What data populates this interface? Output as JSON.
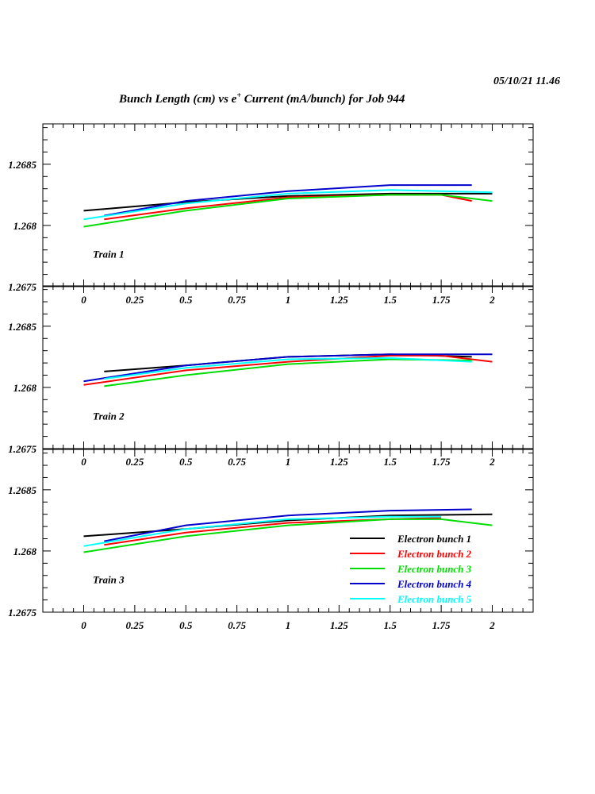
{
  "header": {
    "date": "05/10/21   11.46",
    "title_pre": "Bunch Length (cm) vs e",
    "title_sup": "+",
    "title_post": " Current (mA/bunch) for Job 944"
  },
  "chart_data": {
    "type": "line",
    "title": "Bunch Length (cm) vs e+ Current (mA/bunch) for Job 944",
    "xlabel": "Current (mA/bunch)",
    "ylabel": "Bunch Length (cm)",
    "xlim": [
      -0.2,
      2.2
    ],
    "ylim": [
      1.2675,
      1.26883
    ],
    "x_ticks": [
      "0",
      "0.25",
      "0.5",
      "0.75",
      "1",
      "1.25",
      "1.5",
      "1.75",
      "2"
    ],
    "y_ticks": [
      "1.2675",
      "1.268",
      "1.2685"
    ],
    "legend": {
      "placement": "bottom-right of Train 3 panel",
      "entries": [
        "Electron bunch 1",
        "Electron bunch 2",
        "Electron bunch 3",
        "Electron bunch 4",
        "Electron bunch 5"
      ]
    },
    "colors": [
      "#000000",
      "#ff0000",
      "#00dd00",
      "#0000cc",
      "#00ffff"
    ],
    "panels": [
      {
        "label": "Train 1",
        "series": [
          {
            "name": "Electron bunch 1",
            "x": [
              0,
              0.5,
              1,
              1.5,
              2
            ],
            "y": [
              1.26812,
              1.26819,
              1.26824,
              1.26826,
              1.26826
            ]
          },
          {
            "name": "Electron bunch 2",
            "x": [
              0.1,
              0.5,
              1,
              1.5,
              1.75,
              1.9
            ],
            "y": [
              1.26805,
              1.26814,
              1.26823,
              1.26825,
              1.26825,
              1.2682
            ]
          },
          {
            "name": "Electron bunch 3",
            "x": [
              0,
              0.5,
              1,
              1.5,
              1.75,
              2
            ],
            "y": [
              1.26799,
              1.26812,
              1.26822,
              1.26825,
              1.26825,
              1.2682
            ]
          },
          {
            "name": "Electron bunch 4",
            "x": [
              0.1,
              0.5,
              1,
              1.5,
              1.9
            ],
            "y": [
              1.26808,
              1.2682,
              1.26828,
              1.26833,
              1.26833
            ]
          },
          {
            "name": "Electron bunch 5",
            "x": [
              0,
              0.5,
              1,
              1.5,
              2
            ],
            "y": [
              1.26805,
              1.26818,
              1.26826,
              1.26829,
              1.26827
            ]
          }
        ]
      },
      {
        "label": "Train 2",
        "series": [
          {
            "name": "Electron bunch 1",
            "x": [
              0.1,
              0.5,
              1,
              1.5,
              1.9
            ],
            "y": [
              1.26813,
              1.26818,
              1.26825,
              1.26827,
              1.26825
            ]
          },
          {
            "name": "Electron bunch 2",
            "x": [
              0,
              0.5,
              1,
              1.5,
              1.75,
              2
            ],
            "y": [
              1.26802,
              1.26814,
              1.26821,
              1.26826,
              1.26826,
              1.26821
            ]
          },
          {
            "name": "Electron bunch 3",
            "x": [
              0.1,
              0.5,
              1,
              1.5,
              1.9
            ],
            "y": [
              1.26801,
              1.2681,
              1.26819,
              1.26823,
              1.26822
            ]
          },
          {
            "name": "Electron bunch 4",
            "x": [
              0,
              0.5,
              1,
              1.5,
              2
            ],
            "y": [
              1.26805,
              1.26818,
              1.26825,
              1.26827,
              1.26827
            ]
          },
          {
            "name": "Electron bunch 5",
            "x": [
              0.1,
              0.5,
              1,
              1.5,
              1.9
            ],
            "y": [
              1.26807,
              1.26816,
              1.26823,
              1.26824,
              1.26821
            ]
          }
        ]
      },
      {
        "label": "Train 3",
        "series": [
          {
            "name": "Electron bunch 1",
            "x": [
              0,
              0.5,
              1,
              1.5,
              2
            ],
            "y": [
              1.26812,
              1.26818,
              1.26825,
              1.26829,
              1.2683
            ]
          },
          {
            "name": "Electron bunch 2",
            "x": [
              0.1,
              0.5,
              1,
              1.5,
              1.75
            ],
            "y": [
              1.26805,
              1.26815,
              1.26823,
              1.26826,
              1.26827
            ]
          },
          {
            "name": "Electron bunch 3",
            "x": [
              0,
              0.5,
              1,
              1.5,
              1.75,
              2
            ],
            "y": [
              1.26799,
              1.26812,
              1.26821,
              1.26826,
              1.26826,
              1.26821
            ]
          },
          {
            "name": "Electron bunch 4",
            "x": [
              0.1,
              0.5,
              1,
              1.5,
              1.9
            ],
            "y": [
              1.26808,
              1.26821,
              1.26829,
              1.26833,
              1.26834
            ]
          },
          {
            "name": "Electron bunch 5",
            "x": [
              0,
              0.5,
              1,
              1.5,
              1.75
            ],
            "y": [
              1.26804,
              1.26818,
              1.26826,
              1.26828,
              1.26828
            ]
          }
        ]
      }
    ]
  }
}
